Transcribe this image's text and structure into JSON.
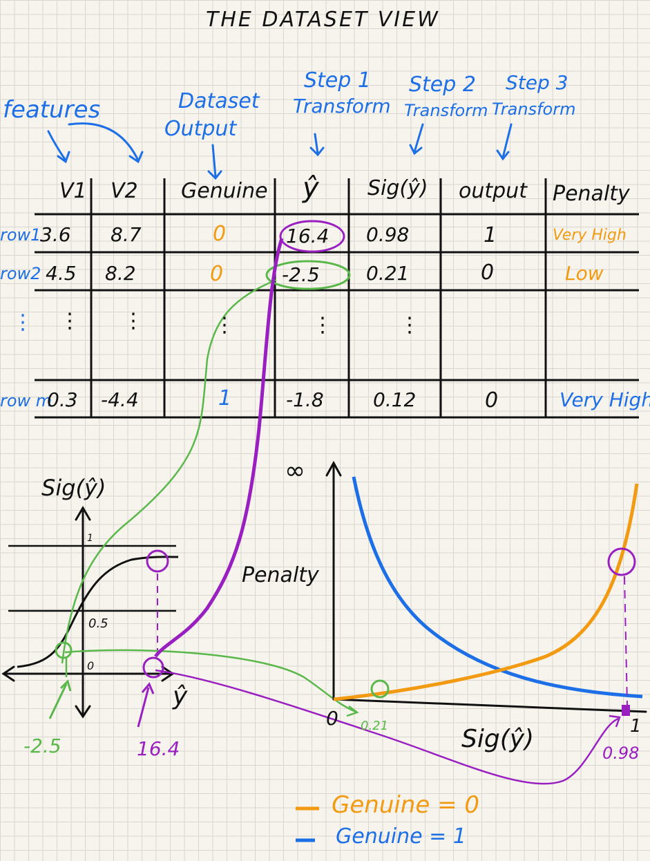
{
  "title": "THE DATASET VIEW",
  "annotations": {
    "features": "features",
    "dataset_output": [
      "Dataset",
      "Output"
    ],
    "step1": [
      "Step 1",
      "Transform"
    ],
    "step2": [
      "Step 2",
      "Transform"
    ],
    "step3": [
      "Step 3",
      "Transform"
    ]
  },
  "table": {
    "headers": [
      "V1",
      "V2",
      "Genuine",
      "ŷ",
      "Sig(ŷ)",
      "output",
      "Penalty"
    ],
    "rows": [
      {
        "label": "row1",
        "v1": "3.6",
        "v2": "8.7",
        "genuine": "0",
        "yhat": "16.4",
        "sig": "0.98",
        "output": "1",
        "penalty": "Very High"
      },
      {
        "label": "row2",
        "v1": "4.5",
        "v2": "8.2",
        "genuine": "0",
        "yhat": "-2.5",
        "sig": "0.21",
        "output": "0",
        "penalty": "Low"
      },
      {
        "label": "row m",
        "v1": "0.3",
        "v2": "-4.4",
        "genuine": "1",
        "yhat": "-1.8",
        "sig": "0.12",
        "output": "0",
        "penalty": "Very High"
      }
    ]
  },
  "sigmoid_plot": {
    "y_label": "Sig(ŷ)",
    "x_label": "ŷ",
    "mid_label": "0.5",
    "one_label": "1",
    "zero_label": "0",
    "point_left": "-2.5",
    "point_right": "16.4"
  },
  "penalty_plot": {
    "y_label": "Penalty",
    "y_top": "∞",
    "x_label": "Sig(ŷ)",
    "origin": "0",
    "x_end": "1",
    "point_low": "0.21",
    "point_high": "0.98"
  },
  "legend": [
    {
      "label": "Genuine = 0",
      "color": "#f29b12"
    },
    {
      "label": "Genuine = 1",
      "color": "#1c6fe6"
    }
  ]
}
